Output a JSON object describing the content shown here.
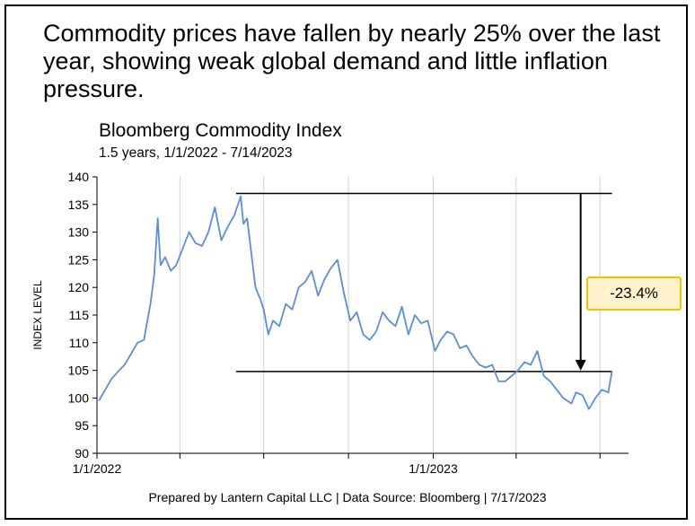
{
  "headline": "Commodity prices have fallen by nearly 25% over the last year, showing weak global demand and little inflation pressure.",
  "footer": "Prepared by Lantern Capital LLC | Data Source: Bloomberg | 7/17/2023",
  "colors": {
    "line": "#5b8ed6",
    "callout_fill": "#fff2cc",
    "callout_border": "#f2c200",
    "frame": "#000000"
  },
  "chart_data": {
    "type": "line",
    "title": "Bloomberg Commodity Index",
    "subtitle": "1.5 years, 1/1/2022 - 7/14/2023",
    "ylabel": "INDEX LEVEL",
    "xlabel": "",
    "ylim": [
      90,
      140
    ],
    "yticks": [
      90,
      95,
      100,
      105,
      110,
      115,
      120,
      125,
      130,
      135,
      140
    ],
    "xlim": [
      "2022-01-01",
      "2023-08-01"
    ],
    "xtick_labels": [
      {
        "date": "2022-01-01",
        "label": "1/1/2022"
      },
      {
        "date": "2023-01-01",
        "label": "1/1/2023"
      }
    ],
    "xtick_marks": [
      "2022-01-01",
      "2022-04-01",
      "2022-07-01",
      "2022-10-01",
      "2023-01-01",
      "2023-04-01",
      "2023-07-01"
    ],
    "grid": "vertical",
    "series": [
      {
        "x": [
          "2022-01-03",
          "2022-01-10",
          "2022-01-17",
          "2022-01-24",
          "2022-01-31",
          "2022-02-07",
          "2022-02-14",
          "2022-02-21",
          "2022-02-28",
          "2022-03-04",
          "2022-03-08",
          "2022-03-11",
          "2022-03-16",
          "2022-03-22",
          "2022-03-28",
          "2022-04-04",
          "2022-04-11",
          "2022-04-18",
          "2022-04-25",
          "2022-05-02",
          "2022-05-09",
          "2022-05-16",
          "2022-05-23",
          "2022-05-30",
          "2022-06-06",
          "2022-06-09",
          "2022-06-13",
          "2022-06-17",
          "2022-06-22",
          "2022-06-27",
          "2022-07-01",
          "2022-07-06",
          "2022-07-11",
          "2022-07-18",
          "2022-07-25",
          "2022-08-01",
          "2022-08-08",
          "2022-08-15",
          "2022-08-22",
          "2022-08-29",
          "2022-09-05",
          "2022-09-12",
          "2022-09-19",
          "2022-09-26",
          "2022-10-03",
          "2022-10-10",
          "2022-10-17",
          "2022-10-24",
          "2022-10-31",
          "2022-11-07",
          "2022-11-14",
          "2022-11-21",
          "2022-11-28",
          "2022-12-05",
          "2022-12-12",
          "2022-12-19",
          "2022-12-26",
          "2023-01-03",
          "2023-01-09",
          "2023-01-16",
          "2023-01-23",
          "2023-01-30",
          "2023-02-06",
          "2023-02-13",
          "2023-02-20",
          "2023-02-27",
          "2023-03-06",
          "2023-03-13",
          "2023-03-20",
          "2023-03-27",
          "2023-04-03",
          "2023-04-10",
          "2023-04-17",
          "2023-04-24",
          "2023-05-01",
          "2023-05-08",
          "2023-05-15",
          "2023-05-22",
          "2023-05-31",
          "2023-06-05",
          "2023-06-12",
          "2023-06-19",
          "2023-06-26",
          "2023-07-03",
          "2023-07-10",
          "2023-07-14"
        ],
        "values": [
          99.5,
          101.5,
          103.5,
          104.8,
          106.0,
          108.0,
          110.0,
          110.5,
          117.0,
          122.0,
          132.5,
          124.0,
          125.5,
          123.0,
          124.0,
          127.0,
          130.0,
          128.0,
          127.5,
          130.0,
          134.5,
          128.5,
          131.0,
          133.0,
          136.5,
          131.5,
          132.5,
          127.0,
          120.0,
          118.0,
          116.0,
          111.5,
          114.0,
          113.0,
          117.0,
          116.0,
          120.0,
          121.0,
          123.0,
          118.5,
          121.5,
          123.5,
          125.0,
          119.0,
          114.0,
          115.5,
          111.5,
          110.5,
          112.0,
          115.5,
          114.0,
          113.0,
          116.5,
          111.5,
          115.0,
          113.5,
          114.0,
          108.5,
          110.5,
          112.0,
          111.5,
          109.0,
          109.5,
          107.5,
          106.0,
          105.5,
          106.0,
          103.0,
          103.0,
          104.0,
          105.0,
          106.5,
          106.0,
          108.5,
          104.0,
          103.0,
          101.5,
          100.0,
          99.0,
          101.0,
          100.5,
          98.0,
          100.0,
          101.5,
          101.0,
          104.8
        ]
      }
    ],
    "annotations": {
      "high_level": 137.0,
      "high_start": "2022-06-01",
      "current_level": 104.8,
      "line_end": "2023-07-14",
      "arrow_x": "2023-06-10",
      "change_label": "-23.4%"
    }
  }
}
